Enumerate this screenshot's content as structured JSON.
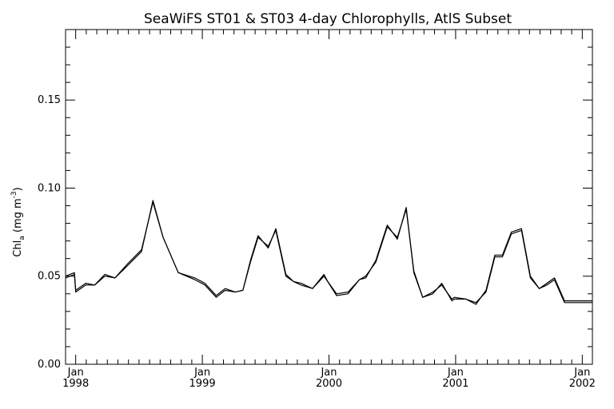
{
  "chart_data": {
    "type": "line",
    "title": "SeaWiFS ST01 & ST03 4-day Chlorophylls, AtlS Subset",
    "ylabel": {
      "prefix": "Chl",
      "subscript": "a",
      "units_open": " (mg m",
      "superscript": "-3",
      "units_close": ")"
    },
    "ylim": [
      0.0,
      0.19
    ],
    "xlim": [
      1997.92,
      2002.08
    ],
    "yticks": [
      {
        "value": 0.0,
        "label": "0.00"
      },
      {
        "value": 0.05,
        "label": "0.05"
      },
      {
        "value": 0.1,
        "label": "0.10"
      },
      {
        "value": 0.15,
        "label": "0.15"
      }
    ],
    "xticks": [
      {
        "value": 1998.0,
        "month": "Jan",
        "year": "1998"
      },
      {
        "value": 1999.0,
        "month": "Jan",
        "year": "1999"
      },
      {
        "value": 2000.0,
        "month": "Jan",
        "year": "2000"
      },
      {
        "value": 2001.0,
        "month": "Jan",
        "year": "2001"
      },
      {
        "value": 2002.0,
        "month": "Jan",
        "year": "2002"
      }
    ],
    "series": [
      {
        "color": "#000000",
        "x": [
          1997.92,
          1997.99,
          1998.0,
          1998.08,
          1998.15,
          1998.23,
          1998.31,
          1998.41,
          1998.52,
          1998.61,
          1998.69,
          1998.81,
          1998.94,
          1999.02,
          1999.11,
          1999.18,
          1999.26,
          1999.32,
          1999.38,
          1999.44,
          1999.52,
          1999.58,
          1999.66,
          1999.72,
          1999.78,
          1999.87,
          1999.96,
          1999.99,
          2000.06,
          2000.15,
          2000.24,
          2000.29,
          2000.37,
          2000.46,
          2000.54,
          2000.61,
          2000.67,
          2000.74,
          2000.82,
          2000.89,
          2000.97,
          2000.99,
          2001.08,
          2001.16,
          2001.24,
          2001.31,
          2001.37,
          2001.44,
          2001.52,
          2001.59,
          2001.66,
          2001.72,
          2001.78,
          2001.86,
          2001.94,
          2002.0,
          2002.08
        ],
        "y": [
          0.05,
          0.052,
          0.042,
          0.046,
          0.045,
          0.051,
          0.049,
          0.057,
          0.065,
          0.092,
          0.072,
          0.052,
          0.049,
          0.046,
          0.039,
          0.043,
          0.041,
          0.042,
          0.059,
          0.073,
          0.066,
          0.077,
          0.051,
          0.047,
          0.046,
          0.043,
          0.05,
          0.047,
          0.04,
          0.041,
          0.048,
          0.049,
          0.059,
          0.079,
          0.071,
          0.089,
          0.052,
          0.038,
          0.041,
          0.045,
          0.037,
          0.038,
          0.037,
          0.035,
          0.041,
          0.061,
          0.061,
          0.074,
          0.076,
          0.049,
          0.043,
          0.046,
          0.049,
          0.036,
          0.036,
          0.036,
          0.036
        ]
      },
      {
        "color": "#000000",
        "x": [
          1997.92,
          1997.99,
          1998.0,
          1998.08,
          1998.15,
          1998.23,
          1998.31,
          1998.41,
          1998.52,
          1998.61,
          1998.69,
          1998.81,
          1998.94,
          1999.02,
          1999.11,
          1999.18,
          1999.26,
          1999.32,
          1999.38,
          1999.44,
          1999.52,
          1999.58,
          1999.66,
          1999.72,
          1999.78,
          1999.87,
          1999.96,
          1999.99,
          2000.06,
          2000.15,
          2000.24,
          2000.29,
          2000.37,
          2000.46,
          2000.54,
          2000.61,
          2000.67,
          2000.74,
          2000.82,
          2000.89,
          2000.97,
          2000.99,
          2001.08,
          2001.16,
          2001.24,
          2001.31,
          2001.37,
          2001.44,
          2001.52,
          2001.59,
          2001.66,
          2001.72,
          2001.78,
          2001.86,
          2001.94,
          2002.0,
          2002.08
        ],
        "y": [
          0.049,
          0.051,
          0.041,
          0.045,
          0.045,
          0.05,
          0.049,
          0.056,
          0.064,
          0.093,
          0.072,
          0.052,
          0.048,
          0.045,
          0.038,
          0.042,
          0.041,
          0.042,
          0.058,
          0.072,
          0.067,
          0.076,
          0.05,
          0.047,
          0.045,
          0.043,
          0.051,
          0.047,
          0.039,
          0.04,
          0.048,
          0.05,
          0.058,
          0.078,
          0.072,
          0.088,
          0.053,
          0.038,
          0.04,
          0.046,
          0.036,
          0.037,
          0.037,
          0.034,
          0.042,
          0.062,
          0.062,
          0.075,
          0.077,
          0.05,
          0.043,
          0.045,
          0.048,
          0.035,
          0.035,
          0.035,
          0.035
        ]
      }
    ]
  }
}
